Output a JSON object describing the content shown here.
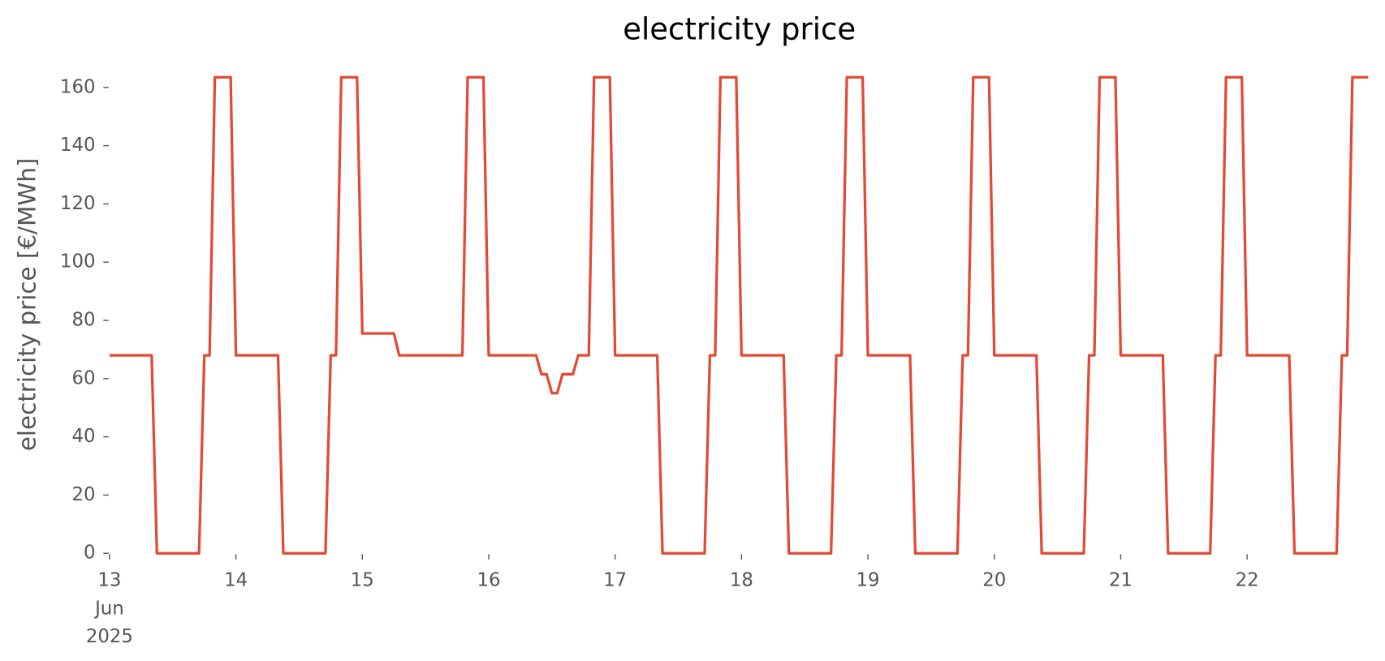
{
  "chart_data": {
    "type": "line",
    "title": "electricity price",
    "y_label": "electricity price [€/MWh]",
    "x": [
      0,
      1,
      2,
      3,
      4,
      5,
      6,
      7,
      8,
      9,
      10,
      11,
      12,
      13,
      14,
      15,
      16,
      17,
      18,
      19,
      20,
      21,
      22,
      23,
      24,
      25,
      26,
      27,
      28,
      29,
      30,
      31,
      32,
      33,
      34,
      35,
      36,
      37,
      38,
      39,
      40,
      41,
      42,
      43,
      44,
      45,
      46,
      47,
      48,
      49,
      50,
      51,
      52,
      53,
      54,
      55,
      56,
      57,
      58,
      59,
      60,
      61,
      62,
      63,
      64,
      65,
      66,
      67,
      68,
      69,
      70,
      71,
      72,
      73,
      74,
      75,
      76,
      77,
      78,
      79,
      80,
      81,
      82,
      83,
      84,
      85,
      86,
      87,
      88,
      89,
      90,
      91,
      92,
      93,
      94,
      95,
      96,
      97,
      98,
      99,
      100,
      101,
      102,
      103,
      104,
      105,
      106,
      107,
      108,
      109,
      110,
      111,
      112,
      113,
      114,
      115,
      116,
      117,
      118,
      119,
      120,
      121,
      122,
      123,
      124,
      125,
      126,
      127,
      128,
      129,
      130,
      131,
      132,
      133,
      134,
      135,
      136,
      137,
      138,
      139,
      140,
      141,
      142,
      143,
      144,
      145,
      146,
      147,
      148,
      149,
      150,
      151,
      152,
      153,
      154,
      155,
      156,
      157,
      158,
      159,
      160,
      161,
      162,
      163,
      164,
      165,
      166,
      167,
      168,
      169,
      170,
      171,
      172,
      173,
      174,
      175,
      176,
      177,
      178,
      179,
      180,
      181,
      182,
      183,
      184,
      185,
      186,
      187,
      188,
      189,
      190,
      191,
      192,
      193,
      194,
      195,
      196,
      197,
      198,
      199,
      200,
      201,
      202,
      203,
      204,
      205,
      206,
      207,
      208,
      209,
      210,
      211,
      212,
      213,
      214,
      215,
      216,
      217,
      218,
      219,
      220,
      221,
      222,
      223,
      224,
      225,
      226,
      227,
      228,
      229,
      230,
      231,
      232,
      233,
      234,
      235,
      236,
      237,
      238,
      239
    ],
    "series": [
      {
        "name": "electricity price",
        "color": "#e24a33",
        "values": [
          68,
          68,
          68,
          68,
          68,
          68,
          68,
          68,
          68,
          0,
          0,
          0,
          0,
          0,
          0,
          0,
          0,
          0,
          68,
          68,
          163.5,
          163.5,
          163.5,
          163.5,
          68,
          68,
          68,
          68,
          68,
          68,
          68,
          68,
          68,
          0,
          0,
          0,
          0,
          0,
          0,
          0,
          0,
          0,
          68,
          68,
          163.5,
          163.5,
          163.5,
          163.5,
          75.5,
          75.5,
          75.5,
          75.5,
          75.5,
          75.5,
          75.5,
          68,
          68,
          68,
          68,
          68,
          68,
          68,
          68,
          68,
          68,
          68,
          68,
          68,
          163.5,
          163.5,
          163.5,
          163.5,
          68,
          68,
          68,
          68,
          68,
          68,
          68,
          68,
          68,
          68,
          61.5,
          61.5,
          55,
          55,
          61.5,
          61.5,
          61.5,
          68,
          68,
          68,
          163.5,
          163.5,
          163.5,
          163.5,
          68,
          68,
          68,
          68,
          68,
          68,
          68,
          68,
          68,
          0,
          0,
          0,
          0,
          0,
          0,
          0,
          0,
          0,
          68,
          68,
          163.5,
          163.5,
          163.5,
          163.5,
          68,
          68,
          68,
          68,
          68,
          68,
          68,
          68,
          68,
          0,
          0,
          0,
          0,
          0,
          0,
          0,
          0,
          0,
          68,
          68,
          163.5,
          163.5,
          163.5,
          163.5,
          68,
          68,
          68,
          68,
          68,
          68,
          68,
          68,
          68,
          0,
          0,
          0,
          0,
          0,
          0,
          0,
          0,
          0,
          68,
          68,
          163.5,
          163.5,
          163.5,
          163.5,
          68,
          68,
          68,
          68,
          68,
          68,
          68,
          68,
          68,
          0,
          0,
          0,
          0,
          0,
          0,
          0,
          0,
          0,
          68,
          68,
          163.5,
          163.5,
          163.5,
          163.5,
          68,
          68,
          68,
          68,
          68,
          68,
          68,
          68,
          68,
          0,
          0,
          0,
          0,
          0,
          0,
          0,
          0,
          0,
          68,
          68,
          163.5,
          163.5,
          163.5,
          163.5,
          68,
          68,
          68,
          68,
          68,
          68,
          68,
          68,
          68,
          0,
          0,
          0,
          0,
          0,
          0,
          0,
          0,
          0,
          68,
          68,
          163.5,
          163.5,
          163.5,
          163.5
        ]
      }
    ],
    "xlim": [
      0,
      239
    ],
    "xticks": [
      {
        "value": 0,
        "label": "13\nJun\n2025"
      },
      {
        "value": 24,
        "label": "14"
      },
      {
        "value": 48,
        "label": "15"
      },
      {
        "value": 72,
        "label": "16"
      },
      {
        "value": 96,
        "label": "17"
      },
      {
        "value": 120,
        "label": "18"
      },
      {
        "value": 144,
        "label": "19"
      },
      {
        "value": 168,
        "label": "20"
      },
      {
        "value": 192,
        "label": "21"
      },
      {
        "value": 216,
        "label": "22"
      }
    ],
    "ylim": [
      0,
      163.5
    ],
    "yticks": [
      0,
      20,
      40,
      60,
      80,
      100,
      120,
      140,
      160
    ],
    "grid": false
  }
}
